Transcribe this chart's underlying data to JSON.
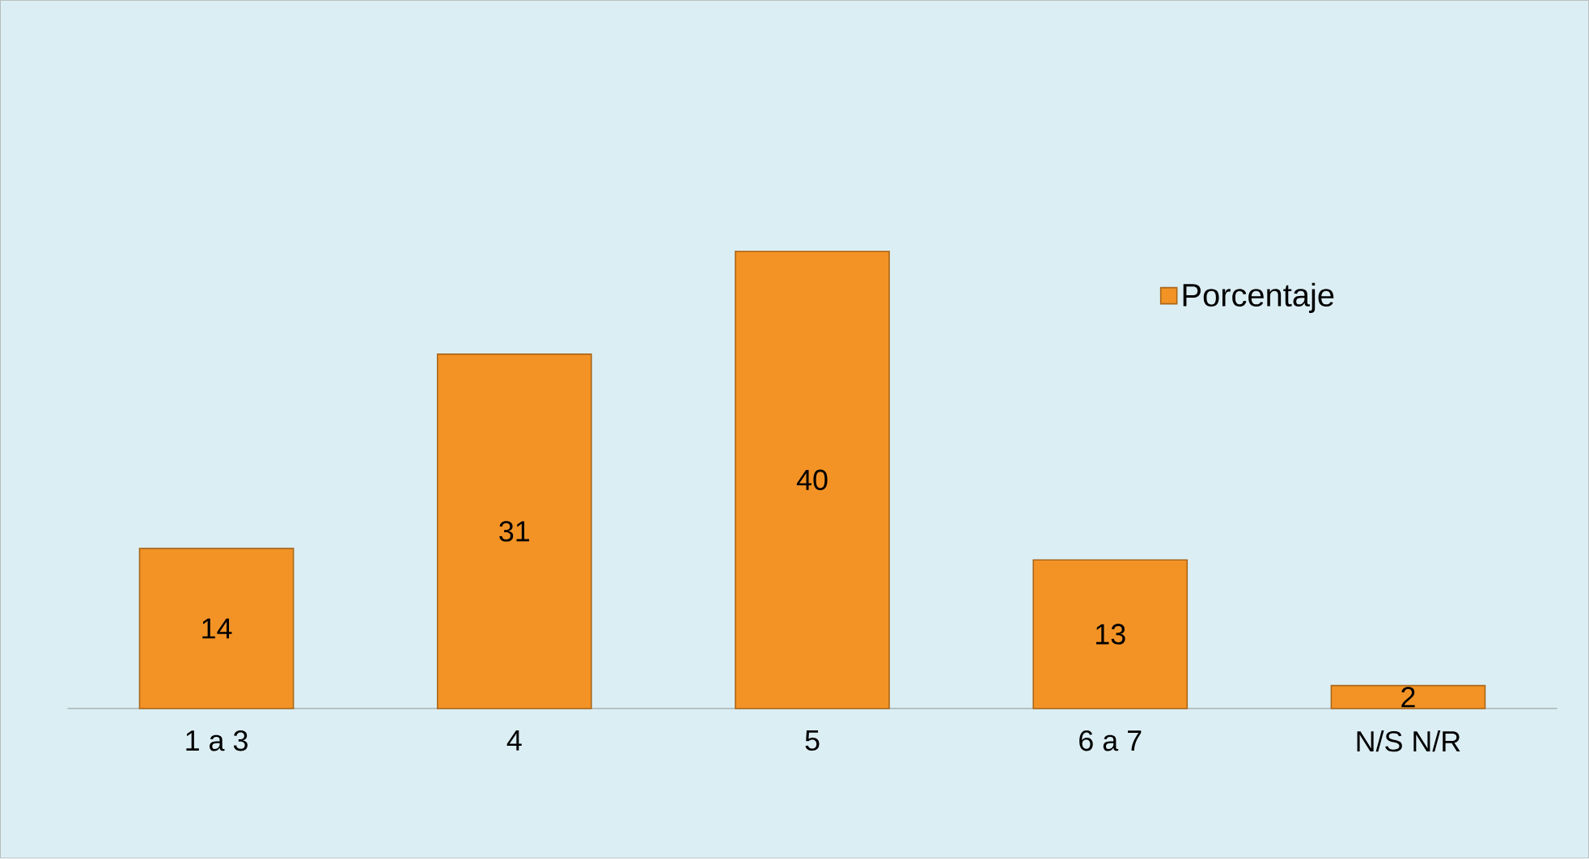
{
  "chart_data": {
    "type": "bar",
    "categories": [
      "1 a 3",
      "4",
      "5",
      "6 a 7",
      "N/S N/R"
    ],
    "series": [
      {
        "name": "Porcentaje",
        "color": "#f39325",
        "values": [
          14,
          31,
          40,
          13,
          2
        ]
      }
    ],
    "data_labels": true,
    "legend": "right"
  }
}
